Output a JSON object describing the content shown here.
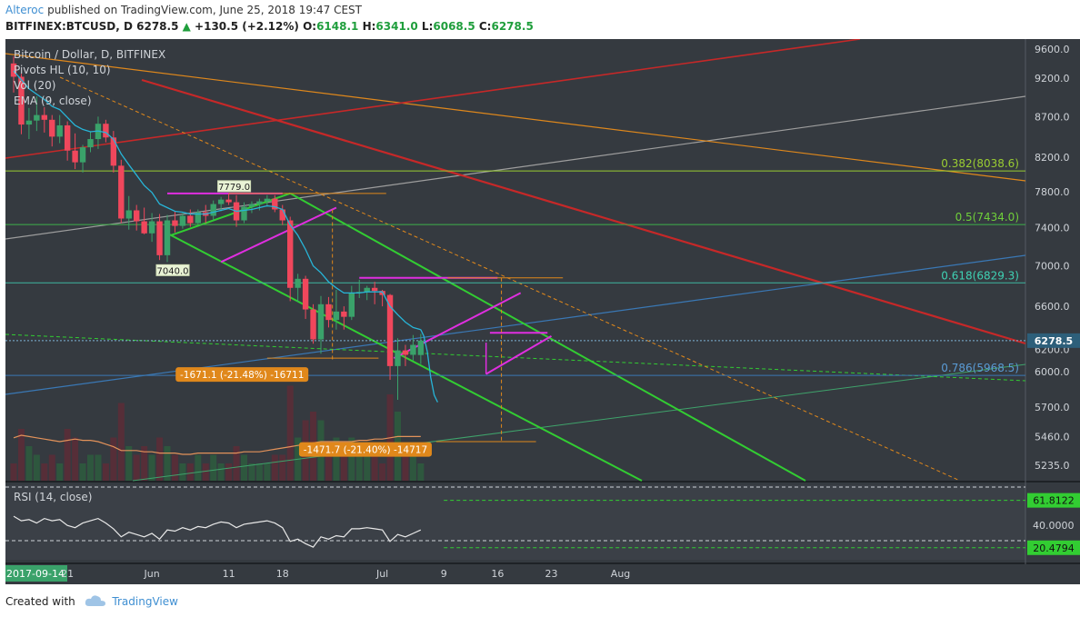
{
  "publisher": {
    "author": "Alteroc",
    "text": "published on TradingView.com, June 25, 2018 19:47 CEST"
  },
  "ohlc": {
    "symbol": "BITFINEX:BTCUSD, D",
    "last": "6278.5",
    "change": "+130.5 (+2.12%)",
    "o_label": "O:",
    "o": "6148.1",
    "h_label": "H:",
    "h": "6341.0",
    "l_label": "L:",
    "l": "6068.5",
    "c_label": "C:",
    "c": "6278.5"
  },
  "legend": {
    "title": "Bitcoin / Dollar, D, BITFINEX",
    "pivots": "Pivots HL (10, 10)",
    "vol": "Vol (20)",
    "ema": "EMA (9, close)",
    "rsi": "RSI (14, close)"
  },
  "footer": {
    "created_with": "Created with",
    "brand": "TradingView"
  },
  "colors": {
    "up": "#3aa26a",
    "down": "#f0475c",
    "ema": "#27b5d8",
    "fib": "#9acd32",
    "channel": "#32cd32",
    "bg": "#353a40"
  },
  "chart_data": {
    "type": "candlestick",
    "symbol": "BITFINEX:BTCUSD",
    "timeframe": "D",
    "title": "Bitcoin / Dollar, D, BITFINEX",
    "x_ticks": [
      "2017-09-14",
      "21",
      "Jun",
      "11",
      "18",
      "Jul",
      "9",
      "16",
      "23",
      "Aug"
    ],
    "x_tick_days": [
      0,
      7,
      18,
      28,
      35,
      48,
      56,
      63,
      70,
      79
    ],
    "y_ticks": [
      9600.0,
      9200.0,
      8700.0,
      8200.0,
      7800.0,
      7400.0,
      7000.0,
      6600.0,
      6200.0,
      6000.0,
      5700.0,
      5460.0,
      5235.0
    ],
    "ylim": [
      5120,
      9740
    ],
    "last_price_label": "6278.5",
    "candles": [
      {
        "o": 9400,
        "h": 9500,
        "l": 9010,
        "c": 9220
      },
      {
        "o": 9220,
        "h": 9260,
        "l": 8480,
        "c": 8600
      },
      {
        "o": 8600,
        "h": 8810,
        "l": 8420,
        "c": 8650
      },
      {
        "o": 8650,
        "h": 8960,
        "l": 8520,
        "c": 8720
      },
      {
        "o": 8720,
        "h": 8820,
        "l": 8500,
        "c": 8660
      },
      {
        "o": 8660,
        "h": 8720,
        "l": 8330,
        "c": 8450
      },
      {
        "o": 8450,
        "h": 8720,
        "l": 8370,
        "c": 8590
      },
      {
        "o": 8590,
        "h": 8640,
        "l": 8160,
        "c": 8280
      },
      {
        "o": 8280,
        "h": 8490,
        "l": 8060,
        "c": 8140
      },
      {
        "o": 8140,
        "h": 8350,
        "l": 8020,
        "c": 8320
      },
      {
        "o": 8320,
        "h": 8510,
        "l": 8260,
        "c": 8420
      },
      {
        "o": 8420,
        "h": 8700,
        "l": 8300,
        "c": 8610
      },
      {
        "o": 8610,
        "h": 8660,
        "l": 8380,
        "c": 8440
      },
      {
        "o": 8440,
        "h": 8520,
        "l": 8020,
        "c": 8100
      },
      {
        "o": 8100,
        "h": 8170,
        "l": 7450,
        "c": 7500
      },
      {
        "o": 7500,
        "h": 7750,
        "l": 7380,
        "c": 7590
      },
      {
        "o": 7590,
        "h": 7650,
        "l": 7370,
        "c": 7470
      },
      {
        "o": 7470,
        "h": 7620,
        "l": 7330,
        "c": 7340
      },
      {
        "o": 7340,
        "h": 7560,
        "l": 7250,
        "c": 7470
      },
      {
        "o": 7470,
        "h": 7550,
        "l": 7060,
        "c": 7110
      },
      {
        "o": 7110,
        "h": 7540,
        "l": 7040,
        "c": 7480
      },
      {
        "o": 7480,
        "h": 7580,
        "l": 7350,
        "c": 7420
      },
      {
        "o": 7420,
        "h": 7560,
        "l": 7390,
        "c": 7530
      },
      {
        "o": 7530,
        "h": 7600,
        "l": 7410,
        "c": 7450
      },
      {
        "o": 7450,
        "h": 7600,
        "l": 7440,
        "c": 7570
      },
      {
        "o": 7570,
        "h": 7650,
        "l": 7450,
        "c": 7530
      },
      {
        "o": 7530,
        "h": 7700,
        "l": 7480,
        "c": 7660
      },
      {
        "o": 7660,
        "h": 7740,
        "l": 7580,
        "c": 7710
      },
      {
        "o": 7710,
        "h": 7779,
        "l": 7650,
        "c": 7680
      },
      {
        "o": 7680,
        "h": 7760,
        "l": 7410,
        "c": 7480
      },
      {
        "o": 7480,
        "h": 7680,
        "l": 7450,
        "c": 7630
      },
      {
        "o": 7630,
        "h": 7690,
        "l": 7560,
        "c": 7660
      },
      {
        "o": 7660,
        "h": 7720,
        "l": 7590,
        "c": 7690
      },
      {
        "o": 7690,
        "h": 7760,
        "l": 7630,
        "c": 7720
      },
      {
        "o": 7720,
        "h": 7760,
        "l": 7570,
        "c": 7600
      },
      {
        "o": 7600,
        "h": 7650,
        "l": 7430,
        "c": 7480
      },
      {
        "o": 7480,
        "h": 7520,
        "l": 6650,
        "c": 6780
      },
      {
        "o": 6780,
        "h": 6920,
        "l": 6640,
        "c": 6870
      },
      {
        "o": 6870,
        "h": 6900,
        "l": 6480,
        "c": 6570
      },
      {
        "o": 6570,
        "h": 6620,
        "l": 6250,
        "c": 6290
      },
      {
        "o": 6290,
        "h": 6700,
        "l": 6160,
        "c": 6620
      },
      {
        "o": 6620,
        "h": 6690,
        "l": 6400,
        "c": 6470
      },
      {
        "o": 6470,
        "h": 6760,
        "l": 6380,
        "c": 6550
      },
      {
        "o": 6550,
        "h": 6600,
        "l": 6380,
        "c": 6500
      },
      {
        "o": 6500,
        "h": 6800,
        "l": 6470,
        "c": 6730
      },
      {
        "o": 6730,
        "h": 6860,
        "l": 6680,
        "c": 6740
      },
      {
        "o": 6740,
        "h": 6800,
        "l": 6660,
        "c": 6780
      },
      {
        "o": 6780,
        "h": 6840,
        "l": 6620,
        "c": 6750
      },
      {
        "o": 6750,
        "h": 6760,
        "l": 6600,
        "c": 6710
      },
      {
        "o": 6710,
        "h": 6720,
        "l": 5930,
        "c": 6050
      },
      {
        "o": 6050,
        "h": 6300,
        "l": 5760,
        "c": 6190
      },
      {
        "o": 6190,
        "h": 6240,
        "l": 6050,
        "c": 6150
      },
      {
        "o": 6150,
        "h": 6330,
        "l": 6100,
        "c": 6240
      },
      {
        "o": 6148.1,
        "h": 6341.0,
        "l": 6068.5,
        "c": 6278.5
      }
    ],
    "ema_9": [
      9300,
      9180,
      9060,
      8990,
      8920,
      8830,
      8790,
      8690,
      8590,
      8540,
      8510,
      8520,
      8500,
      8420,
      8240,
      8110,
      7990,
      7870,
      7790,
      7660,
      7620,
      7580,
      7570,
      7550,
      7550,
      7550,
      7570,
      7590,
      7610,
      7580,
      7590,
      7600,
      7620,
      7640,
      7630,
      7600,
      7430,
      7320,
      7170,
      7000,
      6930,
      6840,
      6780,
      6730,
      6730,
      6730,
      6740,
      6740,
      6740,
      6600,
      6520,
      6450,
      6400,
      6380
    ],
    "ema_9_after": [
      6320,
      6180,
      5950,
      5800,
      5740
    ],
    "volume": [
      2,
      6,
      4,
      3,
      2,
      3,
      2,
      6,
      5,
      2,
      3,
      3,
      2,
      5,
      9,
      4,
      3,
      4,
      3,
      5,
      4,
      3,
      2,
      2,
      3,
      2,
      3,
      2,
      2,
      4,
      3,
      2,
      2,
      2,
      3,
      3,
      11,
      5,
      7,
      8,
      7,
      4,
      5,
      4,
      5,
      3,
      3,
      3,
      2,
      10,
      8,
      4,
      3,
      2
    ],
    "volume_ma": [
      5450,
      5470,
      5460,
      5450,
      5440,
      5430,
      5420,
      5430,
      5440,
      5430,
      5430,
      5420,
      5400,
      5380,
      5350,
      5350,
      5350,
      5340,
      5340,
      5330,
      5330,
      5330,
      5320,
      5320,
      5330,
      5330,
      5330,
      5330,
      5330,
      5330,
      5340,
      5340,
      5340,
      5350,
      5360,
      5370,
      5380,
      5390,
      5400,
      5410,
      5420,
      5420,
      5420,
      5420,
      5420,
      5430,
      5430,
      5440,
      5440,
      5450,
      5460,
      5460,
      5460,
      5460
    ],
    "fibonacci": [
      {
        "label": "0.382(8038.6)",
        "price": 8038.6
      },
      {
        "label": "0.5(7434.0)",
        "price": 7434.0
      },
      {
        "label": "0.618(6829.3)",
        "price": 6829.3
      },
      {
        "label": "0.786(5968.5)",
        "price": 5968.5
      }
    ],
    "pivot_labels": [
      {
        "text": "7779.0",
        "day": 28,
        "price": 7779
      },
      {
        "text": "7040.0",
        "day": 20,
        "price": 7040
      }
    ],
    "measure_labels": [
      {
        "text": "-1671.1 (-21.48%) -16711",
        "day": 36,
        "price": 6000
      },
      {
        "text": "-1471.7 (-21.40%) -14717",
        "day": 51,
        "price": 5380
      }
    ],
    "rsi": {
      "label": "RSI (14, close)",
      "y_ticks": [
        61.8122,
        40.0,
        20.4794
      ],
      "y_tick_labels": [
        "61.8122",
        "40.0000",
        "20.4794"
      ],
      "ylim": [
        10,
        75
      ],
      "values": [
        48,
        44,
        45,
        42,
        46,
        44,
        45,
        40,
        38,
        42,
        44,
        46,
        42,
        37,
        30,
        34,
        32,
        30,
        33,
        28,
        36,
        35,
        38,
        36,
        39,
        38,
        41,
        43,
        42,
        38,
        41,
        42,
        43,
        44,
        42,
        38,
        26,
        28,
        24,
        21,
        30,
        28,
        31,
        30,
        37,
        37,
        38,
        37,
        36,
        26,
        32,
        30,
        33,
        36
      ]
    }
  }
}
